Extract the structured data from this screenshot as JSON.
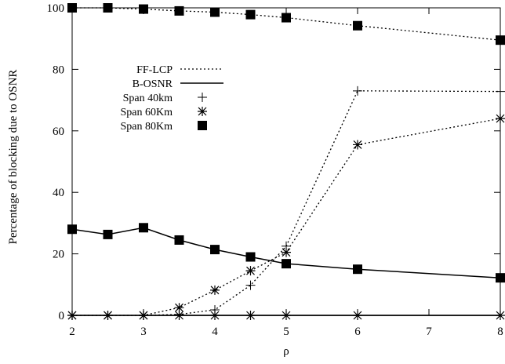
{
  "chart_data": {
    "type": "line",
    "title": "",
    "xlabel": "ρ",
    "ylabel": "Percentage of blocking due to OSNR",
    "xlim": [
      2,
      8
    ],
    "ylim": [
      0,
      100
    ],
    "x_tick_values": [
      2,
      3,
      4,
      5,
      6,
      7,
      8
    ],
    "y_tick_values": [
      0,
      20,
      40,
      60,
      80,
      100
    ],
    "x_ticks": [
      "2",
      "3",
      "4",
      "5",
      "6",
      "7",
      "8"
    ],
    "y_ticks": [
      "0",
      "20",
      "40",
      "60",
      "80",
      "100"
    ],
    "grid": false,
    "legend_position": "upper-left",
    "legend": {
      "lines": [
        {
          "label": "FF-LCP",
          "style": "dotted"
        },
        {
          "label": "B-OSNR",
          "style": "solid"
        }
      ],
      "markers": [
        {
          "label": "Span 40km",
          "marker": "plus"
        },
        {
          "label": "Span 60Km",
          "marker": "star"
        },
        {
          "label": "Span 80Km",
          "marker": "square"
        }
      ]
    },
    "series": [
      {
        "line": "FF-LCP",
        "span": "Span 40km",
        "style": "dotted",
        "marker": "plus",
        "x": [
          2,
          2.5,
          3,
          3.5,
          4,
          4.5,
          5,
          6,
          8
        ],
        "y": [
          0,
          0,
          0,
          0.3,
          1.8,
          9.8,
          22.5,
          73,
          72.8
        ]
      },
      {
        "line": "FF-LCP",
        "span": "Span 60Km",
        "style": "dotted",
        "marker": "star",
        "x": [
          2,
          2.5,
          3,
          3.5,
          4,
          4.5,
          5,
          6,
          8
        ],
        "y": [
          0,
          0,
          0,
          2.5,
          8.2,
          14.5,
          20.5,
          55.5,
          64
        ]
      },
      {
        "line": "FF-LCP",
        "span": "Span 80Km",
        "style": "dotted",
        "marker": "square",
        "x": [
          2,
          2.5,
          3,
          3.5,
          4,
          4.5,
          5,
          6,
          8
        ],
        "y": [
          100,
          100,
          99.6,
          99,
          98.6,
          97.8,
          96.8,
          94.2,
          89.5
        ]
      },
      {
        "line": "B-OSNR",
        "span": "Span 40km",
        "style": "solid",
        "marker": "plus",
        "x": [
          2,
          2.5,
          3,
          3.5,
          4,
          4.5,
          5,
          6,
          8
        ],
        "y": [
          0,
          0,
          0,
          0,
          0,
          0,
          0,
          0,
          0
        ]
      },
      {
        "line": "B-OSNR",
        "span": "Span 60Km",
        "style": "solid",
        "marker": "star",
        "x": [
          2,
          2.5,
          3,
          3.5,
          4,
          4.5,
          5,
          6,
          8
        ],
        "y": [
          0,
          0,
          0,
          0,
          0,
          0,
          0,
          0,
          0
        ]
      },
      {
        "line": "B-OSNR",
        "span": "Span 80Km",
        "style": "solid",
        "marker": "square",
        "x": [
          2,
          2.5,
          3,
          3.5,
          4,
          4.5,
          5,
          6,
          8
        ],
        "y": [
          28,
          26.3,
          28.5,
          24.5,
          21.4,
          19,
          16.8,
          15,
          12.2
        ]
      }
    ]
  }
}
